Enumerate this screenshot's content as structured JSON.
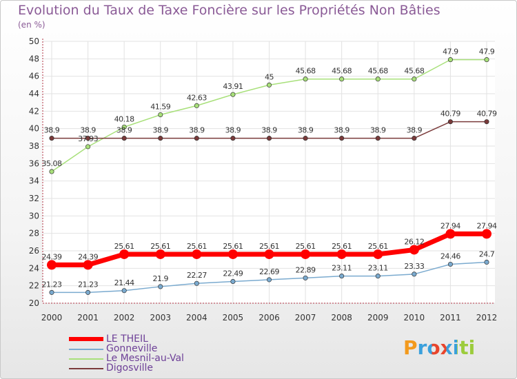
{
  "title": "Evolution du Taux de Taxe Foncière sur les Propriétés Non Bâties",
  "unit_label": "(en %)",
  "logo": {
    "text": "Proxiti"
  },
  "colors": {
    "title": "#8a5a96",
    "grid": "#e2e2e2",
    "axis": "#b03040"
  },
  "chart_data": {
    "type": "line",
    "title": "Evolution du Taux de Taxe Foncière sur les Propriétés Non Bâties",
    "xlabel": "",
    "ylabel": "(en %)",
    "ylim": [
      20,
      50
    ],
    "yticks": [
      20,
      22,
      24,
      26,
      28,
      30,
      32,
      34,
      36,
      38,
      40,
      42,
      44,
      46,
      48,
      50
    ],
    "categories": [
      "2000",
      "2001",
      "2002",
      "2003",
      "2004",
      "2005",
      "2006",
      "2007",
      "2008",
      "2009",
      "2010",
      "2011",
      "2012"
    ],
    "grid": true,
    "legend_position": "bottom-left",
    "series": [
      {
        "name": "LE THEIL",
        "color": "#ff0000",
        "thick": true,
        "values": [
          24.39,
          24.39,
          25.61,
          25.61,
          25.61,
          25.61,
          25.61,
          25.61,
          25.61,
          25.61,
          26.12,
          27.94,
          27.94
        ],
        "labels": [
          "24.39",
          "24.39",
          "25.61",
          "25.61",
          "25.61",
          "25.61",
          "25.61",
          "25.61",
          "25.61",
          "25.61",
          "26.12",
          "27.94",
          "27.94"
        ]
      },
      {
        "name": "Gonneville",
        "color": "#7aaacf",
        "thick": false,
        "values": [
          21.23,
          21.23,
          21.44,
          21.9,
          22.27,
          22.49,
          22.69,
          22.89,
          23.11,
          23.11,
          23.33,
          24.46,
          24.7
        ],
        "labels": [
          "21.23",
          "21.23",
          "21.44",
          "21.9",
          "22.27",
          "22.49",
          "22.69",
          "22.89",
          "23.11",
          "23.11",
          "23.33",
          "24.46",
          "24.7"
        ]
      },
      {
        "name": "Le Mesnil-au-Val",
        "color": "#a8e07a",
        "thick": false,
        "values": [
          35.08,
          37.93,
          40.18,
          41.59,
          42.63,
          43.91,
          45,
          45.68,
          45.68,
          45.68,
          45.68,
          47.9,
          47.9
        ],
        "labels": [
          "35.08",
          "37.93",
          "40.18",
          "41.59",
          "42.63",
          "43.91",
          "45",
          "45.68",
          "45.68",
          "45.68",
          "45.68",
          "47.9",
          "47.9"
        ]
      },
      {
        "name": "Digosville",
        "color": "#7a3a3a",
        "thick": false,
        "values": [
          38.9,
          38.9,
          38.9,
          38.9,
          38.9,
          38.9,
          38.9,
          38.9,
          38.9,
          38.9,
          38.9,
          40.79,
          40.79
        ],
        "labels": [
          "38.9",
          "38.9",
          "38.9",
          "38.9",
          "38.9",
          "38.9",
          "38.9",
          "38.9",
          "38.9",
          "38.9",
          "38.9",
          "40.79",
          "40.79"
        ]
      }
    ]
  }
}
